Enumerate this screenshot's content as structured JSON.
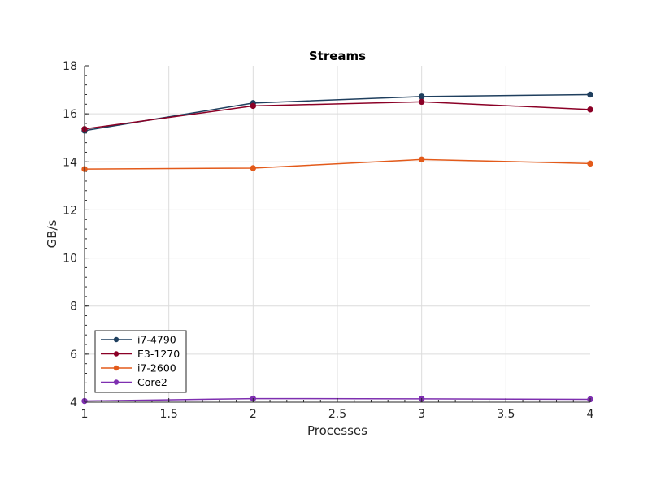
{
  "chart_data": {
    "type": "line",
    "title": "Streams",
    "xlabel": "Processes",
    "ylabel": "GB/s",
    "xlim": [
      1,
      4
    ],
    "ylim": [
      4,
      18
    ],
    "xticks": [
      1,
      1.5,
      2,
      2.5,
      3,
      3.5,
      4
    ],
    "xtick_labels": [
      "1",
      "1.5",
      "2",
      "2.5",
      "3",
      "3.5",
      "4"
    ],
    "yticks": [
      4,
      6,
      8,
      10,
      12,
      14,
      16,
      18
    ],
    "ytick_labels": [
      "4",
      "6",
      "8",
      "10",
      "12",
      "14",
      "16",
      "18"
    ],
    "grid": true,
    "legend_position": "bottom-left",
    "x": [
      1,
      2,
      3,
      4
    ],
    "series": [
      {
        "name": "i7-4790",
        "color": "#1f3f5e",
        "values": [
          15.3,
          16.45,
          16.72,
          16.8
        ]
      },
      {
        "name": "E3-1270",
        "color": "#8b0026",
        "values": [
          15.37,
          16.33,
          16.5,
          16.18
        ]
      },
      {
        "name": "i7-2600",
        "color": "#e35a1a",
        "values": [
          13.7,
          13.74,
          14.1,
          13.93
        ]
      },
      {
        "name": "Core2",
        "color": "#7e2fb0",
        "values": [
          4.05,
          4.15,
          4.14,
          4.12
        ]
      }
    ]
  }
}
